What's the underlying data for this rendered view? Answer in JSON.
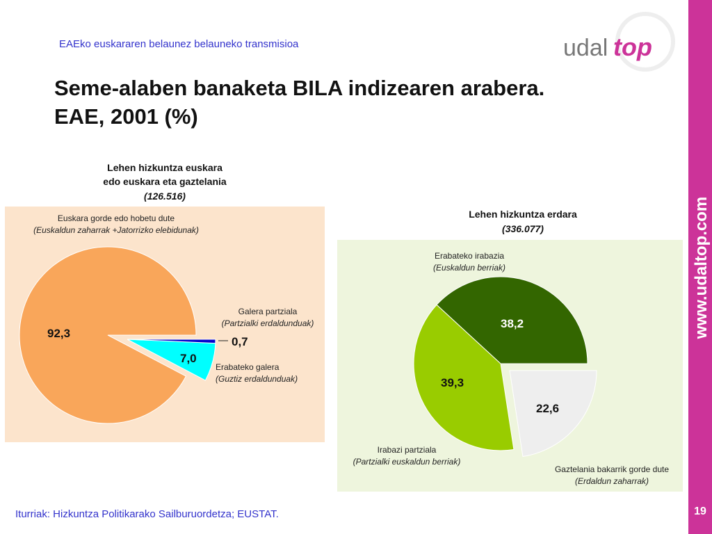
{
  "slide": {
    "header": "EAEko euskararen belaunez belauneko transmisioa",
    "title": [
      "Seme-alaben banaketa BILA indizearen arabera.",
      "EAE, 2001 (%)"
    ],
    "logo": [
      "udal",
      "top"
    ],
    "sidebar": "www.udaltop.com",
    "page": "19",
    "source": "Iturriak: Hizkuntza Politikarako Sailburuordetza; EUSTAT."
  },
  "chart_data": [
    {
      "type": "pie",
      "title": [
        "Lehen hizkuntza euskara",
        "edo euskara eta gaztelania"
      ],
      "subtitle": "(126.516)",
      "categories": [
        "Euskara gorde edo hobetu dute",
        "Erabateko galera",
        "Galera partziala"
      ],
      "category_notes": [
        "(Euskaldun zaharrak +Jatorrizko elebidunak)",
        "(Guztiz erdaldunduak)",
        "(Partzialki erdaldunduak)"
      ],
      "values": [
        92.3,
        7.0,
        0.7
      ],
      "value_labels": [
        "92,3",
        "7,0",
        "0,7"
      ],
      "colors": [
        "#f9a65a",
        "#00ffff",
        "#0000cc"
      ]
    },
    {
      "type": "pie",
      "title": [
        "Lehen hizkuntza erdara"
      ],
      "subtitle": "(336.077)",
      "categories": [
        "Erabateko irabazia",
        "Irabazi partziala",
        "Gaztelania bakarrik gorde dute"
      ],
      "category_notes": [
        "(Euskaldun berriak)",
        "(Partzialki euskaldun berriak)",
        "(Erdaldun zaharrak)"
      ],
      "values": [
        38.2,
        39.3,
        22.6
      ],
      "value_labels": [
        "38,2",
        "39,3",
        "22,6"
      ],
      "colors": [
        "#336600",
        "#99cc00",
        "#eeeeee"
      ]
    }
  ]
}
